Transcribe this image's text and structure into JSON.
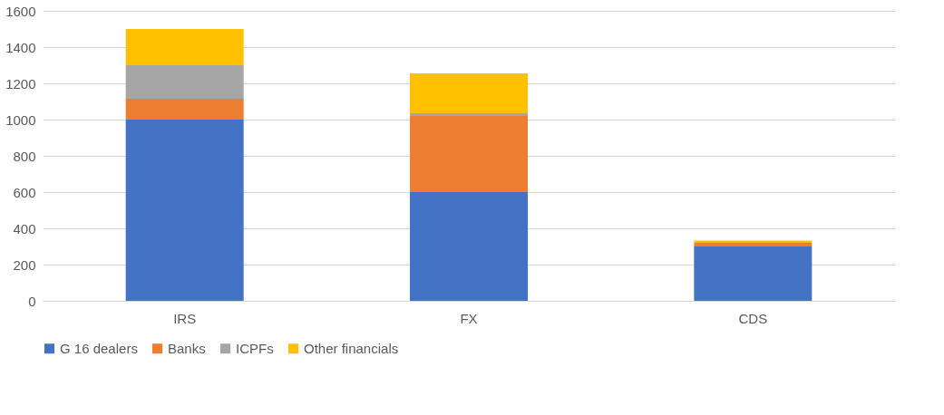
{
  "chart_data": {
    "type": "bar",
    "stacked": true,
    "categories": [
      "IRS",
      "FX",
      "CDS"
    ],
    "series": [
      {
        "name": "G 16 dealers",
        "color": "#4472c4",
        "values": [
          1000,
          600,
          300
        ]
      },
      {
        "name": "Banks",
        "color": "#ed7d31",
        "values": [
          115,
          420,
          20
        ]
      },
      {
        "name": "ICPFs",
        "color": "#a5a5a5",
        "values": [
          185,
          15,
          null
        ]
      },
      {
        "name": "Other financials",
        "color": "#ffc000",
        "values": [
          200,
          220,
          12
        ]
      }
    ],
    "ylim": [
      0,
      1600
    ],
    "yticks": [
      0,
      200,
      400,
      600,
      800,
      1000,
      1200,
      1400,
      1600
    ],
    "grid": "y",
    "legend": "bottom"
  }
}
